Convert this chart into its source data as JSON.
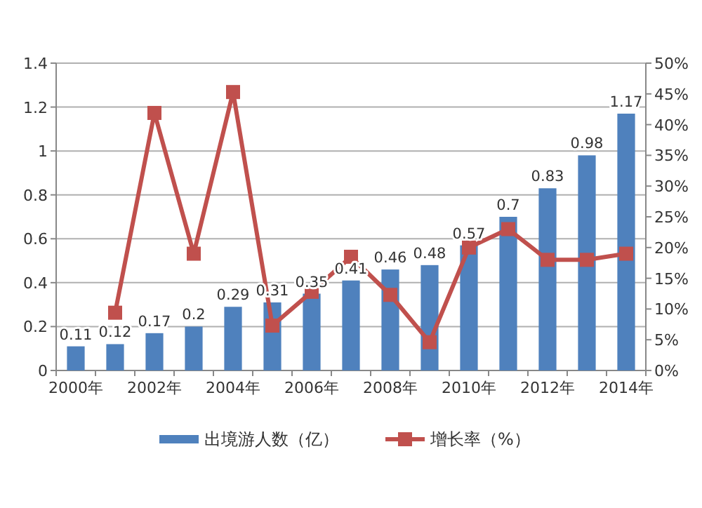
{
  "chart_data": {
    "type": "bar",
    "categories": [
      "2000年",
      null,
      "2002年",
      null,
      "2004年",
      null,
      "2006年",
      null,
      "2008年",
      null,
      "2010年",
      null,
      "2012年",
      null,
      "2014年"
    ],
    "series": [
      {
        "name": "出境游人数（亿）",
        "color": "#4f81bd",
        "values": [
          0.11,
          0.12,
          0.17,
          0.2,
          0.29,
          0.31,
          0.35,
          0.41,
          0.46,
          0.48,
          0.57,
          0.7,
          0.83,
          0.98,
          1.17
        ],
        "value_labels": [
          "0.11",
          "0.12",
          "0.17",
          "0.2",
          "0.29",
          "0.31",
          "0.35",
          "0.41",
          "0.46",
          "0.48",
          "0.57",
          "0.7",
          "0.83",
          "0.98",
          "1.17"
        ]
      },
      {
        "name": "增长率（%）",
        "type": "line",
        "axis": "y2",
        "color": "#c0504d",
        "marker": "square",
        "values": [
          null,
          9.4,
          41.9,
          19,
          45.3,
          7.3,
          12.8,
          18.5,
          12.3,
          4.6,
          20,
          23,
          18,
          18,
          19
        ]
      }
    ],
    "ylim": [
      0,
      1.4
    ],
    "yticks": [
      0,
      0.2,
      0.4,
      0.6,
      0.8,
      1,
      1.2,
      1.4
    ],
    "y2lim": [
      0,
      50
    ],
    "y2ticks": [
      {
        "value": 0,
        "label": "0%"
      },
      {
        "value": 5,
        "label": "5%"
      },
      {
        "value": 10,
        "label": "10%"
      },
      {
        "value": 15,
        "label": "15%"
      },
      {
        "value": 20,
        "label": "20%"
      },
      {
        "value": 25,
        "label": "25%"
      },
      {
        "value": 30,
        "label": "30%"
      },
      {
        "value": 35,
        "label": "35%"
      },
      {
        "value": 40,
        "label": "40%"
      },
      {
        "value": 45,
        "label": "45%"
      },
      {
        "value": 50,
        "label": "50%"
      }
    ],
    "grid": "y",
    "legend": "bottom"
  }
}
